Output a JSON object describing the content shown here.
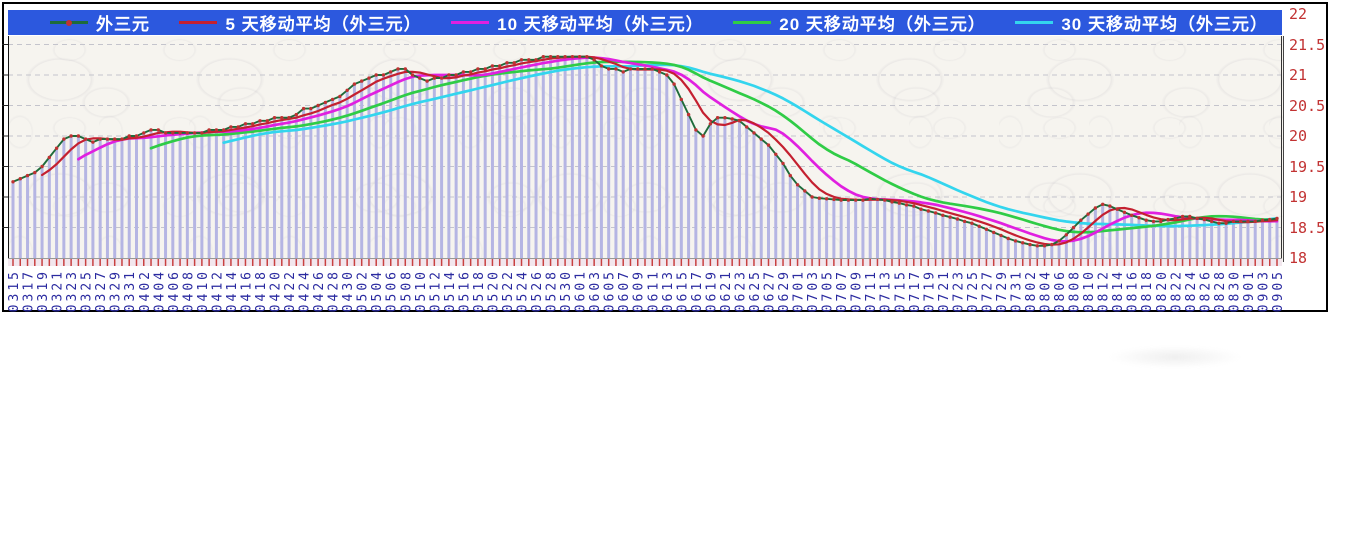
{
  "legend": {
    "background": "#2c58de",
    "text_color": "#ffffff",
    "items": [
      {
        "label": "外三元",
        "color": "#1e6b3a",
        "marker_color": "#c03232"
      },
      {
        "label": "5 天移动平均（外三元）",
        "color": "#c42030"
      },
      {
        "label": "10 天移动平均（外三元）",
        "color": "#e020e0"
      },
      {
        "label": "20 天移动平均（外三元）",
        "color": "#2fcc46"
      },
      {
        "label": "30 天移动平均（外三元）",
        "color": "#33d5ee"
      }
    ]
  },
  "axes": {
    "y_tick_labels": [
      "22",
      "21.5",
      "21",
      "20.5",
      "20",
      "19.5",
      "19",
      "18.5",
      "18"
    ],
    "y_label_color": "#c23232",
    "x_label_color": "#2a2aa0",
    "x_tick_color": "#c84040",
    "x_label_every_n_days": 2
  },
  "chart_data": {
    "type": "line",
    "title": "",
    "xlabel": "",
    "ylabel": "",
    "ylim": [
      18,
      22
    ],
    "grid": "horizontal-dashed-0.5-steps",
    "legend_position": "top",
    "bars_color": "#b5b5e3",
    "x": [
      "0315",
      "0316",
      "0317",
      "0318",
      "0319",
      "0320",
      "0321",
      "0322",
      "0323",
      "0324",
      "0325",
      "0326",
      "0327",
      "0328",
      "0329",
      "0330",
      "0331",
      "0401",
      "0402",
      "0403",
      "0404",
      "0405",
      "0406",
      "0407",
      "0408",
      "0409",
      "0410",
      "0411",
      "0412",
      "0413",
      "0414",
      "0415",
      "0416",
      "0417",
      "0418",
      "0419",
      "0420",
      "0421",
      "0422",
      "0423",
      "0424",
      "0425",
      "0426",
      "0427",
      "0428",
      "0429",
      "0430",
      "0501",
      "0502",
      "0503",
      "0504",
      "0505",
      "0506",
      "0507",
      "0508",
      "0509",
      "0510",
      "0511",
      "0512",
      "0513",
      "0514",
      "0515",
      "0516",
      "0517",
      "0518",
      "0519",
      "0520",
      "0521",
      "0522",
      "0523",
      "0524",
      "0525",
      "0526",
      "0527",
      "0528",
      "0529",
      "0530",
      "0531",
      "0601",
      "0602",
      "0603",
      "0604",
      "0605",
      "0606",
      "0607",
      "0608",
      "0609",
      "0610",
      "0611",
      "0612",
      "0613",
      "0614",
      "0615",
      "0616",
      "0617",
      "0618",
      "0619",
      "0620",
      "0621",
      "0622",
      "0623",
      "0624",
      "0625",
      "0626",
      "0627",
      "0628",
      "0629",
      "0630",
      "0701",
      "0702",
      "0703",
      "0704",
      "0705",
      "0706",
      "0707",
      "0708",
      "0709",
      "0710",
      "0711",
      "0712",
      "0713",
      "0714",
      "0715",
      "0716",
      "0717",
      "0718",
      "0719",
      "0720",
      "0721",
      "0722",
      "0723",
      "0724",
      "0725",
      "0726",
      "0727",
      "0728",
      "0729",
      "0730",
      "0731",
      "0801",
      "0802",
      "0803",
      "0804",
      "0805",
      "0806",
      "0807",
      "0808",
      "0809",
      "0810",
      "0811",
      "0812",
      "0813",
      "0814",
      "0815",
      "0816",
      "0817",
      "0818",
      "0819",
      "0820",
      "0821",
      "0822",
      "0823",
      "0824",
      "0825",
      "0826",
      "0827",
      "0828",
      "0829",
      "0830",
      "0831",
      "0901",
      "0902",
      "0903",
      "0904",
      "0905"
    ],
    "series": [
      {
        "name": "外三元",
        "style": "line-with-markers",
        "color": "#1e6b3a",
        "marker_color": "#c03232",
        "values": [
          19.25,
          19.3,
          19.35,
          19.4,
          19.5,
          19.65,
          19.8,
          19.95,
          20,
          20,
          19.95,
          19.9,
          19.95,
          19.95,
          19.95,
          19.95,
          20,
          20,
          20.05,
          20.1,
          20.1,
          20.05,
          20.05,
          20.05,
          20.05,
          20.05,
          20.05,
          20.1,
          20.1,
          20.1,
          20.15,
          20.15,
          20.2,
          20.2,
          20.25,
          20.25,
          20.3,
          20.3,
          20.3,
          20.35,
          20.45,
          20.45,
          20.5,
          20.55,
          20.6,
          20.65,
          20.75,
          20.85,
          20.9,
          20.95,
          21,
          21,
          21.05,
          21.1,
          21.1,
          21,
          20.95,
          20.9,
          20.95,
          20.95,
          21,
          21,
          21.05,
          21.05,
          21.1,
          21.1,
          21.15,
          21.15,
          21.2,
          21.2,
          21.25,
          21.25,
          21.25,
          21.3,
          21.3,
          21.3,
          21.3,
          21.3,
          21.3,
          21.3,
          21.25,
          21.15,
          21.1,
          21.1,
          21.05,
          21.1,
          21.1,
          21.1,
          21.1,
          21.05,
          21,
          20.85,
          20.6,
          20.35,
          20.1,
          20,
          20.2,
          20.3,
          20.3,
          20.28,
          20.25,
          20.15,
          20.05,
          19.95,
          19.85,
          19.7,
          19.55,
          19.35,
          19.2,
          19.1,
          19,
          18.98,
          18.97,
          18.96,
          18.95,
          18.95,
          18.95,
          18.95,
          18.97,
          18.96,
          18.95,
          18.92,
          18.9,
          18.87,
          18.85,
          18.8,
          18.77,
          18.74,
          18.7,
          18.67,
          18.64,
          18.6,
          18.57,
          18.52,
          18.47,
          18.42,
          18.37,
          18.32,
          18.28,
          18.25,
          18.22,
          18.2,
          18.2,
          18.22,
          18.28,
          18.38,
          18.5,
          18.62,
          18.72,
          18.82,
          18.88,
          18.85,
          18.8,
          18.75,
          18.7,
          18.66,
          18.62,
          18.6,
          18.6,
          18.63,
          18.65,
          18.68,
          18.68,
          18.65,
          18.63,
          18.6,
          18.57,
          18.57,
          18.6,
          18.6,
          18.6,
          18.6,
          18.62,
          18.63,
          18.65
        ]
      },
      {
        "name": "5 天移动平均（外三元）",
        "style": "moving-average",
        "window": 5,
        "color": "#c42030"
      },
      {
        "name": "10 天移动平均（外三元）",
        "style": "moving-average",
        "window": 10,
        "color": "#e020e0"
      },
      {
        "name": "20 天移动平均（外三元）",
        "style": "moving-average",
        "window": 20,
        "color": "#2fcc46"
      },
      {
        "name": "30 天移动平均（外三元）",
        "style": "moving-average",
        "window": 30,
        "color": "#33d5ee"
      }
    ]
  },
  "frame": {
    "border_color": "#000000",
    "plot_background": "#f6f4ef",
    "gridline_color": "#c4c4cc"
  }
}
